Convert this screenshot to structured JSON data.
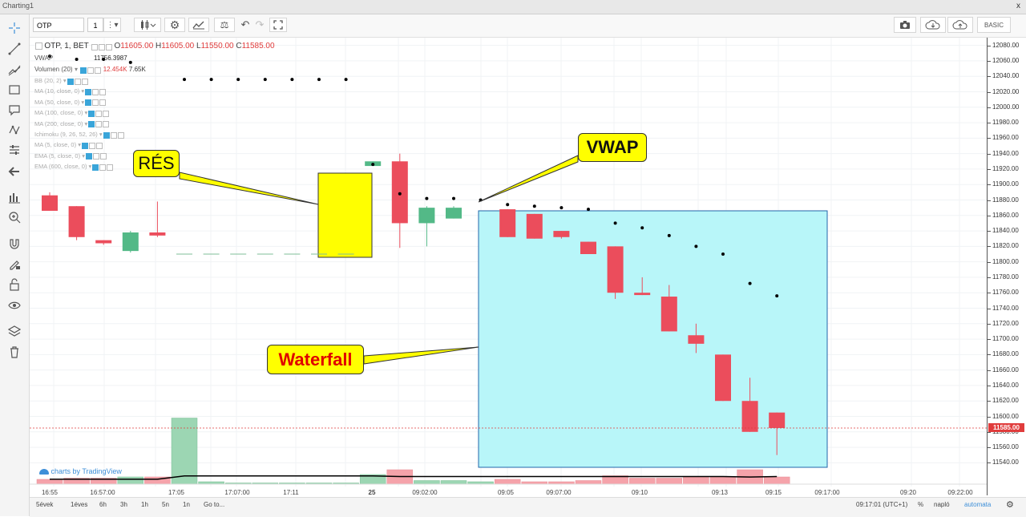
{
  "window": {
    "title": "Charting1",
    "close_label": "x"
  },
  "toolbar": {
    "symbol": "OTP",
    "interval": "1",
    "buttons": [
      {
        "name": "more-menu-button",
        "icon": "more-icon"
      },
      {
        "name": "bar-style-button",
        "icon": "candles-icon"
      },
      {
        "name": "settings-button",
        "icon": "gear-icon"
      },
      {
        "name": "indicators-button",
        "icon": "indicators-icon"
      },
      {
        "name": "compare-button",
        "icon": "scales-icon"
      },
      {
        "name": "undo-button",
        "icon": "undo-icon"
      },
      {
        "name": "redo-button",
        "icon": "redo-icon"
      },
      {
        "name": "fullscreen-button",
        "icon": "fullscreen-icon"
      }
    ],
    "right_buttons": [
      {
        "name": "screenshot-button",
        "icon": "camera-icon"
      },
      {
        "name": "load-layout-button",
        "icon": "cloud-download-icon"
      },
      {
        "name": "save-layout-button",
        "icon": "cloud-upload-icon"
      }
    ],
    "mode_label": "BASIC"
  },
  "left_tools": [
    "crosshair-icon",
    "trendline-icon",
    "fib-icon",
    "rect-icon",
    "comment-icon",
    "pattern-icon",
    "measure-icon",
    "back-arrow-icon",
    "chart-icon",
    "zoom-in-icon",
    "magnet-icon",
    "lock-pencil-icon",
    "unlock-icon",
    "eye-icon",
    "layers-icon",
    "trash-icon"
  ],
  "legend": {
    "symbol_line": "OTP, 1, BET",
    "o_label": "O",
    "o": "11605.00",
    "h_label": "H",
    "h": "11605.00",
    "l_label": "L",
    "l": "11550.00",
    "c_label": "C",
    "c": "11585.00",
    "vwap_name": "VWAP",
    "vwap_value": "11756.3987",
    "vol_name": "Volumen (20)",
    "vol_v1": "12.454K",
    "vol_v2": "7.65K",
    "indicators": [
      "BB (20, 2)",
      "MA (10, close, 0)",
      "MA (50, close, 0)",
      "MA (100, close, 0)",
      "MA (200, close, 0)",
      "Ichimoku (9, 26, 52, 26)",
      "MA (5, close, 0)",
      "EMA (5, close, 0)",
      "EMA (600, close, 0)"
    ]
  },
  "annotations": {
    "gap": "RÉS",
    "vwap": "VWAP",
    "waterfall": "Waterfall"
  },
  "watermark": "charts by TradingView",
  "chart_data": {
    "type": "candlestick",
    "ylim": [
      11530,
      12090
    ],
    "y_ticks": [
      "12080.00",
      "12060.00",
      "12040.00",
      "12020.00",
      "12000.00",
      "11980.00",
      "11960.00",
      "11940.00",
      "11920.00",
      "11900.00",
      "11880.00",
      "11860.00",
      "11840.00",
      "11820.00",
      "11800.00",
      "11780.00",
      "11760.00",
      "11740.00",
      "11720.00",
      "11700.00",
      "11680.00",
      "11660.00",
      "11640.00",
      "11620.00",
      "11600.00",
      "11580.00",
      "11560.00",
      "11540.00"
    ],
    "y_tick_values": [
      12080,
      12060,
      12040,
      12020,
      12000,
      11980,
      11960,
      11940,
      11920,
      11900,
      11880,
      11860,
      11840,
      11820,
      11800,
      11780,
      11760,
      11740,
      11720,
      11700,
      11680,
      11660,
      11640,
      11620,
      11600,
      11580,
      11560,
      11540
    ],
    "last_price": "11585.00",
    "last_price_value": 11585,
    "x_labels": [
      "16:55",
      "16:57:00",
      "17:05",
      "17:07:00",
      "17:11",
      "25",
      "09:02:00",
      "09:05",
      "09:07:00",
      "09:10",
      "09:13",
      "09:15",
      "09:17:00",
      "09:20",
      "09:22:00"
    ],
    "candles": [
      {
        "o": 11886,
        "h": 11890,
        "l": 11866,
        "c": 11866
      },
      {
        "o": 11872,
        "h": 11872,
        "l": 11828,
        "c": 11832
      },
      {
        "o": 11828,
        "h": 11828,
        "l": 11822,
        "c": 11824
      },
      {
        "o": 11814,
        "h": 11840,
        "l": 11812,
        "c": 11838
      },
      {
        "o": 11838,
        "h": 11878,
        "l": 11832,
        "c": 11834
      },
      {
        "o": 11810,
        "h": 11810,
        "l": 11810,
        "c": 11810
      },
      {
        "o": 11810,
        "h": 11810,
        "l": 11810,
        "c": 11810
      },
      {
        "o": 11810,
        "h": 11810,
        "l": 11810,
        "c": 11810
      },
      {
        "o": 11810,
        "h": 11810,
        "l": 11810,
        "c": 11810
      },
      {
        "o": 11810,
        "h": 11810,
        "l": 11810,
        "c": 11810
      },
      {
        "o": 11810,
        "h": 11810,
        "l": 11810,
        "c": 11810
      },
      {
        "o": 11810,
        "h": 11810,
        "l": 11810,
        "c": 11810
      },
      {
        "o": 11924,
        "h": 11930,
        "l": 11924,
        "c": 11930
      },
      {
        "o": 11930,
        "h": 11940,
        "l": 11818,
        "c": 11850
      },
      {
        "o": 11850,
        "h": 11872,
        "l": 11820,
        "c": 11870
      },
      {
        "o": 11856,
        "h": 11872,
        "l": 11856,
        "c": 11870
      },
      null,
      {
        "o": 11868,
        "h": 11868,
        "l": 11832,
        "c": 11832
      },
      {
        "o": 11862,
        "h": 11862,
        "l": 11830,
        "c": 11830
      },
      {
        "o": 11840,
        "h": 11840,
        "l": 11830,
        "c": 11832
      },
      {
        "o": 11826,
        "h": 11826,
        "l": 11810,
        "c": 11810
      },
      {
        "o": 11820,
        "h": 11820,
        "l": 11752,
        "c": 11760
      },
      {
        "o": 11760,
        "h": 11780,
        "l": 11757,
        "c": 11757
      },
      {
        "o": 11755,
        "h": 11770,
        "l": 11710,
        "c": 11710
      },
      {
        "o": 11705,
        "h": 11720,
        "l": 11682,
        "c": 11694
      },
      {
        "o": 11680,
        "h": 11680,
        "l": 11620,
        "c": 11620
      },
      {
        "o": 11620,
        "h": 11650,
        "l": 11580,
        "c": 11580
      },
      {
        "o": 11605,
        "h": 11605,
        "l": 11550,
        "c": 11585
      }
    ],
    "vwap": [
      null,
      null,
      null,
      null,
      null,
      12036,
      12036,
      12036,
      12036,
      12036,
      12036,
      12036,
      11926,
      11888,
      11882,
      11882,
      11880,
      11874,
      11872,
      11870,
      11868,
      11850,
      11844,
      11834,
      11820,
      11810,
      11772,
      11756
    ],
    "legend_vwap_dots": [
      12066,
      12062,
      12062,
      12058
    ],
    "volume_ratio": [
      0.04,
      0.05,
      0.05,
      0.06,
      0.06,
      0.55,
      0.02,
      0.01,
      0.01,
      0.01,
      0.01,
      0.01,
      0.08,
      0.12,
      0.03,
      0.03,
      0.02,
      0.04,
      0.02,
      0.02,
      0.03,
      0.07,
      0.05,
      0.05,
      0.06,
      0.06,
      0.12,
      0.06
    ],
    "volume_ma": [
      0.09,
      0.09,
      0.09,
      0.09,
      0.09,
      0.15,
      0.15,
      0.15,
      0.15,
      0.15,
      0.15,
      0.15,
      0.15,
      0.14,
      0.14,
      0.14,
      0.14,
      0.14,
      0.14,
      0.14,
      0.14,
      0.14,
      0.14,
      0.14,
      0.14,
      0.14,
      0.13,
      0.14
    ],
    "colors": {
      "up": "#53b987",
      "down": "#eb4d5c",
      "up_vol": "#9cd6b3",
      "down_vol": "#f5a3aa",
      "last": "#e03c3c",
      "waterfall": "#b8f6f9"
    }
  },
  "bottombar": {
    "ranges": [
      "5évek",
      "1éves",
      "6h",
      "3h",
      "1h",
      "5n",
      "1n"
    ],
    "goto": "Go to...",
    "time": "09:17:01 (UTC+1)",
    "pct": "%",
    "log": "napló",
    "auto": "automata"
  }
}
